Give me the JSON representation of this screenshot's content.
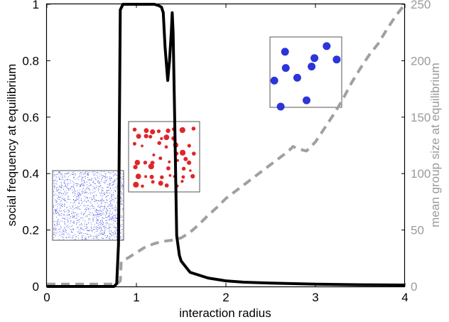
{
  "chart_data": {
    "type": "line",
    "title": "",
    "xlabel": "interaction radius",
    "ylabel_left": "social frequency at equilibrium",
    "ylabel_right": "mean group size at equilibrium",
    "xlim": [
      0,
      4
    ],
    "ylim_left": [
      0,
      1
    ],
    "ylim_right": [
      0,
      250
    ],
    "x_ticks": [
      "0",
      "1",
      "2",
      "3",
      "4"
    ],
    "y_left_ticks": [
      "0",
      "0.2",
      "0.4",
      "0.6",
      "0.8",
      "1"
    ],
    "y_right_ticks": [
      "0",
      "50",
      "100",
      "150",
      "200",
      "250"
    ],
    "grid": false,
    "colors": {
      "social": "#000000",
      "group": "#a0a0a0",
      "inset_sparse": "#4a58e0",
      "inset_mid": "#e0262a",
      "inset_large": "#2b35d8"
    },
    "series": [
      {
        "axis": "left",
        "style": "solid",
        "x": [
          0,
          0.75,
          0.78,
          0.8,
          0.82,
          0.85,
          0.9,
          1.0,
          1.1,
          1.2,
          1.25,
          1.28,
          1.3,
          1.32,
          1.35,
          1.37,
          1.39,
          1.4,
          1.41,
          1.43,
          1.45,
          1.48,
          1.5,
          1.55,
          1.6,
          1.7,
          1.8,
          1.9,
          2.0,
          2.2,
          2.5,
          3.0,
          3.5,
          4.0
        ],
        "y": [
          0,
          0,
          0.01,
          0.15,
          0.98,
          1.0,
          1.0,
          1.0,
          1.0,
          1.0,
          0.995,
          0.99,
          0.97,
          0.85,
          0.73,
          0.8,
          0.9,
          0.97,
          0.9,
          0.55,
          0.18,
          0.11,
          0.09,
          0.07,
          0.05,
          0.04,
          0.03,
          0.025,
          0.02,
          0.015,
          0.012,
          0.008,
          0.006,
          0.005
        ]
      },
      {
        "axis": "right",
        "style": "dashed",
        "x": [
          0,
          0.78,
          0.82,
          0.83,
          0.9,
          1.0,
          1.1,
          1.2,
          1.3,
          1.4,
          1.45,
          1.5,
          1.6,
          1.7,
          1.8,
          1.9,
          2.0,
          2.1,
          2.2,
          2.3,
          2.4,
          2.5,
          2.6,
          2.7,
          2.75,
          2.8,
          2.9,
          3.0,
          3.1,
          3.2,
          3.3,
          3.4,
          3.5,
          3.6,
          3.7,
          3.8,
          3.9,
          4.0
        ],
        "y": [
          2,
          2,
          5,
          22,
          25,
          30,
          35,
          38,
          40,
          41,
          42,
          43,
          48,
          55,
          63,
          70,
          78,
          84,
          90,
          96,
          102,
          108,
          114,
          120,
          124,
          122,
          120,
          128,
          140,
          152,
          165,
          180,
          193,
          205,
          215,
          228,
          240,
          250
        ]
      }
    ]
  }
}
